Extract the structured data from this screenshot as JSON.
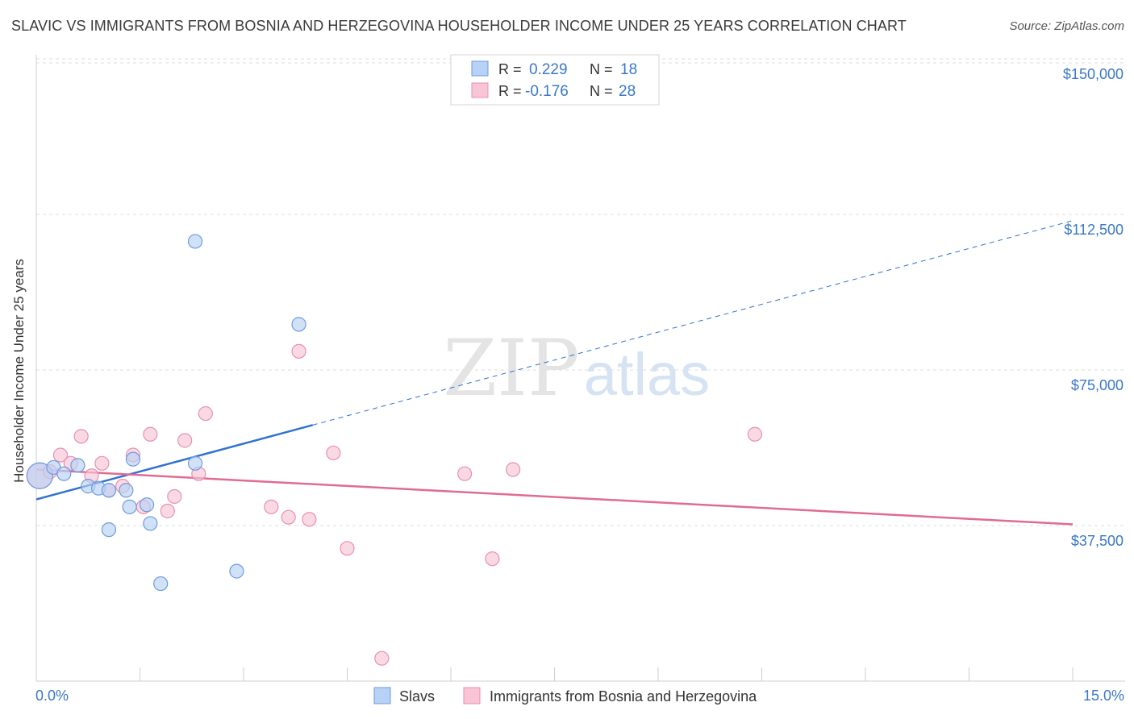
{
  "title": "SLAVIC VS IMMIGRANTS FROM BOSNIA AND HERZEGOVINA HOUSEHOLDER INCOME UNDER 25 YEARS CORRELATION CHART",
  "source": "Source: ZipAtlas.com",
  "watermark": {
    "zip": "ZIP",
    "atlas": "atlas"
  },
  "colors": {
    "slavs": "#6d9be0",
    "slavs_fill": "#b8d2f5",
    "slavs_line": "#2f72d0",
    "bosnia": "#e890b0",
    "bosnia_fill": "#f8c4d6",
    "bosnia_line": "#e06b94",
    "axis_label": "#3a78c9",
    "grid": "#dcdcdc"
  },
  "legend_top": [
    {
      "r_label": "R =",
      "r_value": "0.229",
      "n_label": "N =",
      "n_value": "18"
    },
    {
      "r_label": "R =",
      "r_value": "-0.176",
      "n_label": "N =",
      "n_value": "28"
    }
  ],
  "legend_bottom": [
    "Slavs",
    "Immigrants from Bosnia and Herzegovina"
  ],
  "chart_data": {
    "type": "scatter",
    "ylabel": "Householder Income Under 25 years",
    "xlim": [
      0,
      15
    ],
    "ylim": [
      0,
      155000
    ],
    "x_tick_labels": [
      {
        "value": 0,
        "label": "0.0%"
      },
      {
        "value": 15,
        "label": "15.0%"
      }
    ],
    "y_ticks": [
      {
        "value": 37500,
        "label": "$37,500"
      },
      {
        "value": 75000,
        "label": "$75,000"
      },
      {
        "value": 112500,
        "label": "$112,500"
      },
      {
        "value": 150000,
        "label": "$150,000"
      }
    ],
    "grid": true,
    "legend_placement": "top-center",
    "series": [
      {
        "name": "Slavs",
        "points": [
          [
            0.05,
            49500
          ],
          [
            0.25,
            51500
          ],
          [
            0.4,
            50000
          ],
          [
            0.6,
            52000
          ],
          [
            0.75,
            47000
          ],
          [
            0.9,
            46500
          ],
          [
            1.05,
            36500
          ],
          [
            1.35,
            42000
          ],
          [
            1.4,
            53500
          ],
          [
            1.6,
            42500
          ],
          [
            1.65,
            38000
          ],
          [
            1.8,
            23500
          ],
          [
            2.3,
            52500
          ],
          [
            2.9,
            26500
          ],
          [
            3.8,
            86000
          ],
          [
            2.3,
            106000
          ],
          [
            1.05,
            46000
          ],
          [
            1.3,
            46000
          ]
        ],
        "trend": {
          "x0": 0,
          "y0": 43800,
          "x1": 15,
          "y1": 111000,
          "solid_until_x": 4.0
        }
      },
      {
        "name": "Immigrants from Bosnia and Herzegovina",
        "points": [
          [
            0.05,
            49500
          ],
          [
            0.2,
            50500
          ],
          [
            0.35,
            54500
          ],
          [
            0.5,
            52500
          ],
          [
            0.65,
            59000
          ],
          [
            0.8,
            49500
          ],
          [
            0.95,
            52500
          ],
          [
            1.05,
            46000
          ],
          [
            1.25,
            47000
          ],
          [
            1.4,
            54500
          ],
          [
            1.55,
            42000
          ],
          [
            1.65,
            59500
          ],
          [
            1.9,
            41000
          ],
          [
            2.0,
            44500
          ],
          [
            2.15,
            58000
          ],
          [
            2.35,
            50000
          ],
          [
            2.45,
            64500
          ],
          [
            3.4,
            42000
          ],
          [
            3.65,
            39500
          ],
          [
            3.8,
            79500
          ],
          [
            3.95,
            39000
          ],
          [
            4.3,
            55000
          ],
          [
            4.5,
            32000
          ],
          [
            5.0,
            5500
          ],
          [
            6.2,
            50000
          ],
          [
            6.6,
            29500
          ],
          [
            6.9,
            51000
          ],
          [
            10.4,
            59500
          ]
        ],
        "trend": {
          "x0": 0,
          "y0": 51000,
          "x1": 15,
          "y1": 37800,
          "solid_until_x": 15
        }
      }
    ]
  }
}
